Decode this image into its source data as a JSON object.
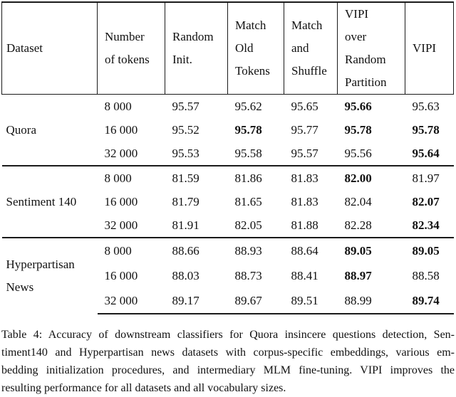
{
  "table": {
    "headers": [
      "Dataset",
      "Number\nof tokens",
      "Random\nInit.",
      "Match\nOld\nTokens",
      "Match\nand\nShuffle",
      "VIPI\nover\nRandom\nPartition",
      "VIPI"
    ],
    "groups": [
      {
        "dataset": "Quora",
        "rows": [
          {
            "tokens": "8 000",
            "cells": [
              {
                "v": "95.57",
                "bold": false
              },
              {
                "v": "95.62",
                "bold": false
              },
              {
                "v": "95.65",
                "bold": false
              },
              {
                "v": "95.66",
                "bold": true
              },
              {
                "v": "95.63",
                "bold": false
              }
            ]
          },
          {
            "tokens": "16 000",
            "cells": [
              {
                "v": "95.52",
                "bold": false
              },
              {
                "v": "95.78",
                "bold": true
              },
              {
                "v": "95.77",
                "bold": false
              },
              {
                "v": "95.78",
                "bold": true
              },
              {
                "v": "95.78",
                "bold": true
              }
            ]
          },
          {
            "tokens": "32 000",
            "cells": [
              {
                "v": "95.53",
                "bold": false
              },
              {
                "v": "95.58",
                "bold": false
              },
              {
                "v": "95.57",
                "bold": false
              },
              {
                "v": "95.56",
                "bold": false
              },
              {
                "v": "95.64",
                "bold": true
              }
            ]
          }
        ]
      },
      {
        "dataset": "Sentiment 140",
        "rows": [
          {
            "tokens": "8 000",
            "cells": [
              {
                "v": "81.59",
                "bold": false
              },
              {
                "v": "81.86",
                "bold": false
              },
              {
                "v": "81.83",
                "bold": false
              },
              {
                "v": "82.00",
                "bold": true
              },
              {
                "v": "81.97",
                "bold": false
              }
            ]
          },
          {
            "tokens": "16 000",
            "cells": [
              {
                "v": "81.79",
                "bold": false
              },
              {
                "v": "81.65",
                "bold": false
              },
              {
                "v": "81.83",
                "bold": false
              },
              {
                "v": "82.04",
                "bold": false
              },
              {
                "v": "82.07",
                "bold": true
              }
            ]
          },
          {
            "tokens": "32 000",
            "cells": [
              {
                "v": "81.91",
                "bold": false
              },
              {
                "v": "82.05",
                "bold": false
              },
              {
                "v": "81.88",
                "bold": false
              },
              {
                "v": "82.28",
                "bold": false
              },
              {
                "v": "82.34",
                "bold": true
              }
            ]
          }
        ]
      },
      {
        "dataset": "Hyperpartisan\nNews",
        "rows": [
          {
            "tokens": "8 000",
            "cells": [
              {
                "v": "88.66",
                "bold": false
              },
              {
                "v": "88.93",
                "bold": false
              },
              {
                "v": "88.64",
                "bold": false
              },
              {
                "v": "89.05",
                "bold": true
              },
              {
                "v": "89.05",
                "bold": true
              }
            ]
          },
          {
            "tokens": "16 000",
            "cells": [
              {
                "v": "88.03",
                "bold": false
              },
              {
                "v": "88.73",
                "bold": false
              },
              {
                "v": "88.41",
                "bold": false
              },
              {
                "v": "88.97",
                "bold": true
              },
              {
                "v": "88.58",
                "bold": false
              }
            ]
          },
          {
            "tokens": "32 000",
            "cells": [
              {
                "v": "89.17",
                "bold": false
              },
              {
                "v": "89.67",
                "bold": false
              },
              {
                "v": "89.51",
                "bold": false
              },
              {
                "v": "88.99",
                "bold": false
              },
              {
                "v": "89.74",
                "bold": true
              }
            ]
          }
        ]
      }
    ]
  },
  "caption": {
    "lines": [
      "Table 4: Accuracy of downstream classifiers for Quora insincere questions detection, Sen-",
      "timent140 and Hyperpartisan news datasets with corpus-specific embeddings, various em-",
      "bedding initialization procedures, and intermediary MLM fine-tuning. VIPI improves the",
      "resulting performance for all datasets and all vocabulary sizes."
    ]
  },
  "colors": {
    "rule": "#1a1a1a",
    "text": "#111111"
  }
}
